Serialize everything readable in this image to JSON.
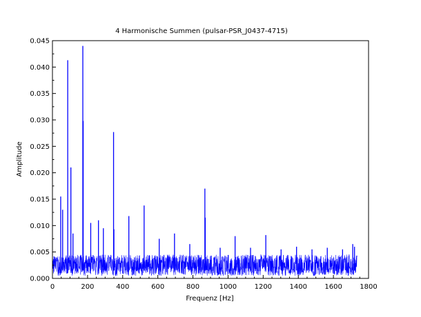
{
  "chart_data": {
    "type": "line",
    "title": "4 Harmonische Summen (pulsar-PSR_J0437-4715)",
    "xlabel": "Frequenz [Hz]",
    "ylabel": "Amplitude",
    "xlim": [
      0,
      1800
    ],
    "ylim": [
      0,
      0.045
    ],
    "x_ticks": [
      0,
      200,
      400,
      600,
      800,
      1000,
      1200,
      1400,
      1600,
      1800
    ],
    "x_tick_labels": [
      "0",
      "200",
      "400",
      "600",
      "800",
      "1000",
      "1200",
      "1400",
      "1600",
      "1800"
    ],
    "y_ticks": [
      0,
      0.005,
      0.01,
      0.015,
      0.02,
      0.025,
      0.03,
      0.035,
      0.04,
      0.045
    ],
    "y_tick_labels": [
      "0.000",
      "0.005",
      "0.010",
      "0.015",
      "0.020",
      "0.025",
      "0.030",
      "0.035",
      "0.040",
      "0.045"
    ],
    "grid": false,
    "line_color": "#0000ff",
    "series": [
      {
        "frequency_range": [
          0,
          1735
        ],
        "noise_floor_range": [
          0.0005,
          0.0045
        ],
        "peaks": [
          {
            "x": 47,
            "y": 0.0155
          },
          {
            "x": 58,
            "y": 0.013
          },
          {
            "x": 87,
            "y": 0.0413
          },
          {
            "x": 105,
            "y": 0.021
          },
          {
            "x": 117,
            "y": 0.0085
          },
          {
            "x": 173,
            "y": 0.044
          },
          {
            "x": 175,
            "y": 0.0298
          },
          {
            "x": 218,
            "y": 0.0105
          },
          {
            "x": 262,
            "y": 0.011
          },
          {
            "x": 290,
            "y": 0.0095
          },
          {
            "x": 348,
            "y": 0.0277
          },
          {
            "x": 350,
            "y": 0.0093
          },
          {
            "x": 435,
            "y": 0.0118
          },
          {
            "x": 522,
            "y": 0.0138
          },
          {
            "x": 608,
            "y": 0.0075
          },
          {
            "x": 695,
            "y": 0.0085
          },
          {
            "x": 782,
            "y": 0.0065
          },
          {
            "x": 868,
            "y": 0.017
          },
          {
            "x": 870,
            "y": 0.0115
          },
          {
            "x": 955,
            "y": 0.0058
          },
          {
            "x": 1040,
            "y": 0.008
          },
          {
            "x": 1128,
            "y": 0.0058
          },
          {
            "x": 1215,
            "y": 0.0082
          },
          {
            "x": 1302,
            "y": 0.0055
          },
          {
            "x": 1390,
            "y": 0.006
          },
          {
            "x": 1478,
            "y": 0.0055
          },
          {
            "x": 1565,
            "y": 0.0058
          },
          {
            "x": 1652,
            "y": 0.0055
          },
          {
            "x": 1710,
            "y": 0.0065
          },
          {
            "x": 1720,
            "y": 0.006
          }
        ]
      }
    ]
  }
}
